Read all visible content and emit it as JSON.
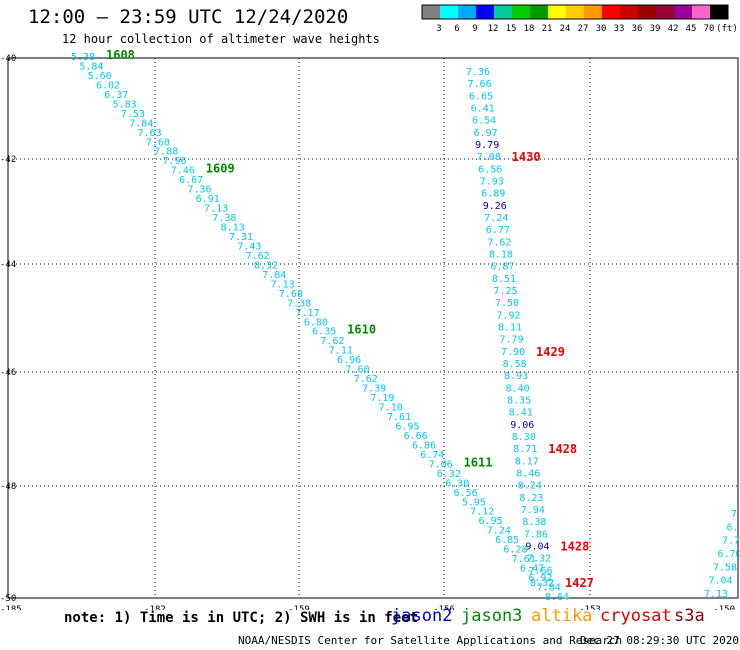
{
  "title": "12:00 — 23:59 UTC 12/24/2020",
  "subtitle": "12 hour collection of altimeter wave heights",
  "colorbar": {
    "colors": [
      "#808080",
      "#00ffff",
      "#00aaff",
      "#0000ff",
      "#00cc99",
      "#00cc00",
      "#009900",
      "#ffff00",
      "#ffcc00",
      "#ff9900",
      "#ff0000",
      "#cc0000",
      "#990000",
      "#990033",
      "#990099",
      "#ff66cc",
      "#000000"
    ],
    "labels": [
      "3",
      "6",
      "9",
      "12",
      "15",
      "18",
      "21",
      "24",
      "27",
      "30",
      "33",
      "36",
      "39",
      "42",
      "45",
      "70",
      "(ft)"
    ]
  },
  "axes": {
    "lat_ticks": [
      "-40",
      "-42",
      "-44",
      "-46",
      "-48",
      "-50"
    ],
    "lon_ticks": [
      "-185",
      "-182",
      "-159",
      "-156",
      "-153",
      "-150"
    ]
  },
  "legend": {
    "note": "note: 1) Time is in UTC; 2) SWH is in feet",
    "satellites": [
      {
        "name": "jason2",
        "color": "#0000cc"
      },
      {
        "name": "jason3",
        "color": "#008800"
      },
      {
        "name": "altika",
        "color": "#ff9900"
      },
      {
        "name": "cryosat",
        "color": "#dd0000"
      },
      {
        "name": "s3a",
        "color": "#880000"
      }
    ]
  },
  "footer": {
    "credit": "NOAA/NESDIS Center for Satellite Applications and Research",
    "timestamp": "Dec 27 08:29:30 UTC 2020"
  },
  "chart_data": {
    "type": "scatter",
    "colors": {
      "light": "#00aaff",
      "cyan": "#00c8f0",
      "dark": "#0000aa",
      "jason3": "#008800",
      "cryosat": "#ee0000"
    },
    "track_a": {
      "values": [
        "5.38",
        "5.84",
        "5.60",
        "6.02",
        "6.37",
        "5.83",
        "7.53",
        "7.84",
        "7.63",
        "7.60",
        "7.88",
        "7.96",
        "7.46",
        "6.67",
        "7.36",
        "6.91",
        "7.13",
        "7.38",
        "8.13",
        "7.31",
        "7.43",
        "7.62",
        "8.32",
        "7.84",
        "7.13",
        "7.68",
        "7.38",
        "7.17",
        "6.80",
        "6.35",
        "7.62",
        "7.11",
        "6.96",
        "7.60",
        "7.62",
        "7.39",
        "7.19",
        "7.10",
        "7.61",
        "6.95",
        "6.66",
        "6.86",
        "6.74",
        "7.06",
        "6.32",
        "6.30",
        "6.56",
        "5.95",
        "7.12",
        "6.95",
        "7.24",
        "6.85",
        "6.28",
        "7.61",
        "6.47",
        "6.92",
        "7.84",
        "8.64"
      ],
      "times": [
        {
          "label": "1608",
          "index": 0
        },
        {
          "label": "1609",
          "index": 12
        },
        {
          "label": "1610",
          "index": 29
        },
        {
          "label": "1611",
          "index": 43
        }
      ]
    },
    "track_b": {
      "values": [
        "7.36",
        "7.66",
        "6.65",
        "6.41",
        "6.54",
        "6.97",
        "9.79",
        "7.08",
        "6.56",
        "7.93",
        "6.89",
        "9.26",
        "7.24",
        "6.77",
        "7.62",
        "8.18",
        "6.87",
        "8.51",
        "7.25",
        "7.50",
        "7.92",
        "8.11",
        "7.79",
        "7.90",
        "8.58",
        "8.93",
        "8.40",
        "8.35",
        "8.41",
        "9.06",
        "8.30",
        "8.71",
        "8.17",
        "8.46",
        "8.24",
        "8.23",
        "7.94",
        "8.38",
        "7.86",
        "9.04",
        "7.32",
        "7.66",
        "8.32"
      ],
      "dark_indices": [
        6,
        11,
        29,
        39
      ],
      "times": [
        {
          "label": "1430",
          "index": 7
        },
        {
          "label": "1429",
          "index": 23
        },
        {
          "label": "1428",
          "index": 31
        },
        {
          "label": "1428",
          "index": 39
        },
        {
          "label": "1427",
          "index": 42
        }
      ]
    },
    "track_c": {
      "values": [
        "7",
        "6.",
        "7.7",
        "6.70",
        "7.58",
        "7.04",
        "7.13"
      ]
    }
  }
}
